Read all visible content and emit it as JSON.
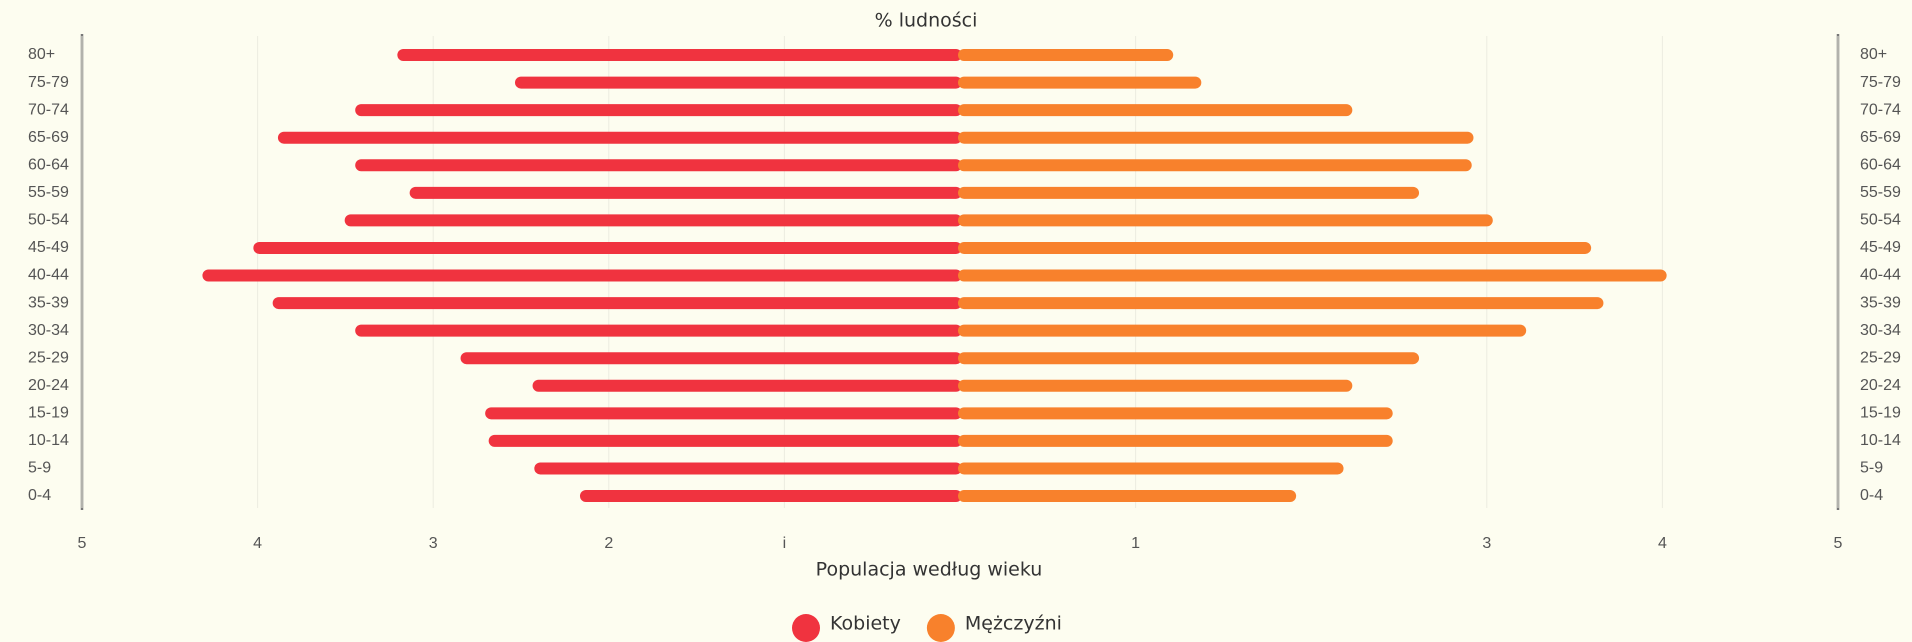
{
  "chart_data": {
    "type": "pyramid",
    "title": "% ludności",
    "x_label": "Populacja według wieku",
    "categories": [
      "80+",
      "75-79",
      "70-74",
      "65-69",
      "60-64",
      "55-59",
      "50-54",
      "45-49",
      "40-44",
      "35-39",
      "30-34",
      "25-29",
      "20-24",
      "15-19",
      "10-14",
      "5-9",
      "0-4"
    ],
    "series": [
      {
        "name": "Kobiety",
        "color": "#f0333f",
        "values": [
          3.17,
          2.5,
          3.41,
          3.85,
          3.41,
          3.1,
          3.47,
          3.99,
          4.28,
          3.88,
          3.41,
          2.81,
          2.4,
          2.67,
          2.65,
          2.39,
          2.13
        ]
      },
      {
        "name": "Mężczyźni",
        "color": "#f8812c",
        "values": [
          1.18,
          1.34,
          2.2,
          2.89,
          2.88,
          2.58,
          3.0,
          3.56,
          3.99,
          3.63,
          3.19,
          2.58,
          2.2,
          2.43,
          2.43,
          2.15,
          1.88
        ]
      }
    ],
    "xlim": [
      -5,
      5
    ],
    "xticks": [
      {
        "value": -5,
        "label": "5"
      },
      {
        "value": -4,
        "label": "4"
      },
      {
        "value": -3,
        "label": "3"
      },
      {
        "value": -2,
        "label": "2"
      },
      {
        "value": -1,
        "label": "i"
      },
      1,
      3,
      4,
      5
    ],
    "grid": true,
    "legend": "bottom"
  }
}
